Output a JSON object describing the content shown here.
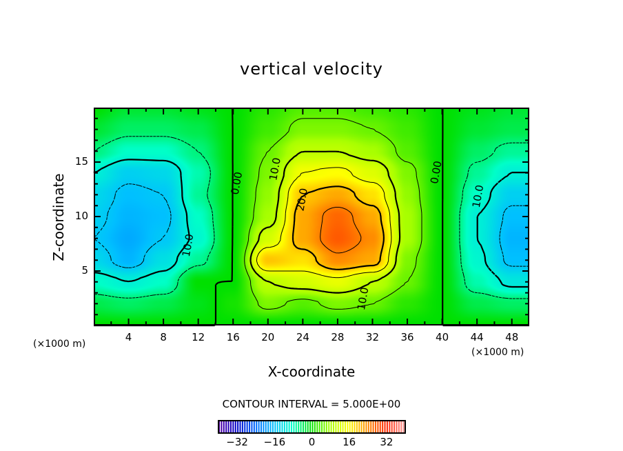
{
  "chart_data": {
    "type": "heatmap",
    "subtype": "filled-contour",
    "title": "vertical velocity",
    "xlabel": "X-coordinate",
    "ylabel": "Z-coordinate",
    "x_unit_left": "(×1000 m)",
    "x_unit_right": "(×1000 m)",
    "xlim": [
      0,
      50
    ],
    "ylim": [
      0,
      20
    ],
    "x_ticks": [
      4,
      8,
      12,
      16,
      20,
      24,
      28,
      32,
      36,
      40,
      44,
      48
    ],
    "y_ticks": [
      5,
      10,
      15
    ],
    "contour_interval_label": "CONTOUR INTERVAL = 5.000E+00",
    "contour_interval": 5,
    "contour_levels": [
      -15,
      -10,
      -5,
      0,
      5,
      10,
      15,
      20,
      25
    ],
    "contour_labels": [
      {
        "text": "0.00",
        "x": 16.8,
        "z": 13.0
      },
      {
        "text": "10.0",
        "x": 21.2,
        "z": 14.3
      },
      {
        "text": "20.0",
        "x": 24.3,
        "z": 11.5
      },
      {
        "text": "10.0",
        "x": 11.2,
        "z": 7.3
      },
      {
        "text": "0.00",
        "x": 39.7,
        "z": 14.0
      },
      {
        "text": "10.0",
        "x": 44.5,
        "z": 11.8
      },
      {
        "text": "10.0",
        "x": 31.3,
        "z": 2.4
      }
    ],
    "grid_x": [
      0,
      4,
      8,
      12,
      16,
      20,
      24,
      28,
      32,
      36,
      40,
      44,
      48,
      50
    ],
    "grid_z": [
      0,
      2,
      4,
      6,
      8,
      10,
      12,
      14,
      16,
      18,
      20
    ],
    "values": [
      [
        0,
        0,
        0,
        0,
        0,
        0,
        0,
        0,
        0,
        0,
        0,
        0,
        0,
        0
      ],
      [
        -3,
        -4,
        -3,
        -1,
        1,
        6,
        4,
        6,
        5,
        2,
        0,
        -3,
        -4,
        -4
      ],
      [
        -8,
        -10,
        -8,
        0,
        0,
        10,
        12,
        14,
        10,
        5,
        0,
        -7,
        -11,
        -11
      ],
      [
        -13,
        -17,
        -12,
        -6,
        0,
        20,
        18,
        24,
        22,
        6,
        0,
        -9,
        -16,
        -16
      ],
      [
        -15,
        -18,
        -15,
        -9,
        0,
        12,
        22,
        28,
        24,
        8,
        0,
        -10,
        -17,
        -17
      ],
      [
        -14,
        -17,
        -16,
        -8,
        0,
        8,
        22,
        27,
        22,
        8,
        0,
        -10,
        -16,
        -16
      ],
      [
        -13,
        -16,
        -15,
        -6,
        0,
        7,
        20,
        22,
        18,
        7,
        0,
        -8,
        -14,
        -14
      ],
      [
        -10,
        -14,
        -13,
        -7,
        0,
        6,
        15,
        16,
        13,
        6,
        0,
        -6,
        -10,
        -10
      ],
      [
        -5,
        -8,
        -8,
        -5,
        0,
        5,
        10,
        10,
        8,
        4,
        0,
        -4,
        -6,
        -6
      ],
      [
        -2,
        -4,
        -4,
        -3,
        0,
        3,
        6,
        6,
        5,
        3,
        0,
        -2,
        -3,
        -3
      ],
      [
        0,
        -2,
        -2,
        -1,
        0,
        2,
        4,
        4,
        3,
        2,
        0,
        -1,
        -2,
        -2
      ]
    ],
    "colorbar": {
      "range": [
        -40,
        40
      ],
      "ticks": [
        -32,
        -16,
        0,
        16,
        32
      ],
      "tick_labels": [
        "−32",
        "−16",
        "0",
        "16",
        "32"
      ],
      "colors": [
        "#5a00a0",
        "#0000c8",
        "#0068ff",
        "#00c0ff",
        "#00ffc8",
        "#00e000",
        "#a8ff00",
        "#ffff00",
        "#ff8c00",
        "#ff2800",
        "#ff9a9a"
      ]
    }
  }
}
